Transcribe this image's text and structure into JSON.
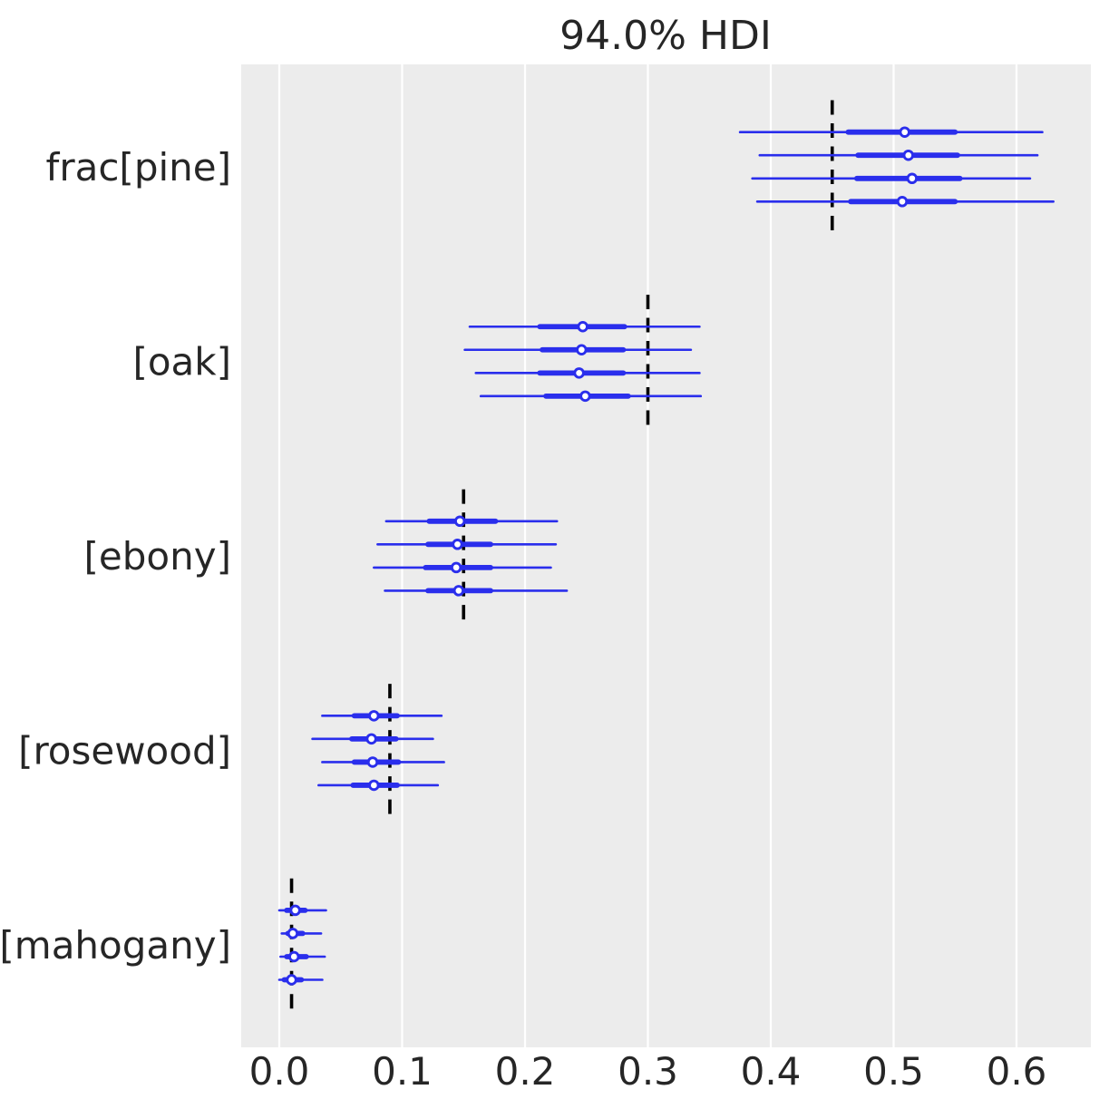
{
  "figure": {
    "title": "94.0% HDI"
  },
  "chart_data": {
    "type": "forest",
    "title": "94.0% HDI",
    "hdi_prob": 0.94,
    "xlabel": "",
    "ylabel": "",
    "xlim": [
      -0.031,
      0.66
    ],
    "x_ticks": [
      "0.0",
      "0.1",
      "0.2",
      "0.3",
      "0.4",
      "0.5",
      "0.6"
    ],
    "x_tick_values": [
      0.0,
      0.1,
      0.2,
      0.3,
      0.4,
      0.5,
      0.6
    ],
    "grid": "vertical-white-gridlines-on-gray",
    "legend": "none",
    "colors": {
      "series": "#2a2eec",
      "marker_fill": "#ffffff",
      "reference_line": "#000000",
      "plot_background": "#ececec",
      "gridline": "#ffffff",
      "text": "#262626"
    },
    "groups": [
      {
        "label": "frac[pine]",
        "reference": 0.45,
        "chains": [
          {
            "hdi": [
              0.375,
              0.621
            ],
            "quartile": [
              0.463,
              0.55
            ],
            "median": 0.509
          },
          {
            "hdi": [
              0.391,
              0.617
            ],
            "quartile": [
              0.471,
              0.552
            ],
            "median": 0.512
          },
          {
            "hdi": [
              0.385,
              0.611
            ],
            "quartile": [
              0.47,
              0.554
            ],
            "median": 0.515
          },
          {
            "hdi": [
              0.389,
              0.63
            ],
            "quartile": [
              0.465,
              0.55
            ],
            "median": 0.507
          }
        ]
      },
      {
        "label": "[oak]",
        "reference": 0.3,
        "chains": [
          {
            "hdi": [
              0.155,
              0.342
            ],
            "quartile": [
              0.212,
              0.281
            ],
            "median": 0.247
          },
          {
            "hdi": [
              0.151,
              0.335
            ],
            "quartile": [
              0.214,
              0.28
            ],
            "median": 0.246
          },
          {
            "hdi": [
              0.16,
              0.342
            ],
            "quartile": [
              0.212,
              0.28
            ],
            "median": 0.244
          },
          {
            "hdi": [
              0.164,
              0.343
            ],
            "quartile": [
              0.217,
              0.284
            ],
            "median": 0.249
          }
        ]
      },
      {
        "label": "[ebony]",
        "reference": 0.15,
        "chains": [
          {
            "hdi": [
              0.087,
              0.226
            ],
            "quartile": [
              0.122,
              0.176
            ],
            "median": 0.147
          },
          {
            "hdi": [
              0.08,
              0.225
            ],
            "quartile": [
              0.121,
              0.172
            ],
            "median": 0.145
          },
          {
            "hdi": [
              0.077,
              0.221
            ],
            "quartile": [
              0.119,
              0.172
            ],
            "median": 0.144
          },
          {
            "hdi": [
              0.086,
              0.234
            ],
            "quartile": [
              0.121,
              0.172
            ],
            "median": 0.146
          }
        ]
      },
      {
        "label": "[rosewood]",
        "reference": 0.09,
        "chains": [
          {
            "hdi": [
              0.035,
              0.132
            ],
            "quartile": [
              0.061,
              0.096
            ],
            "median": 0.077
          },
          {
            "hdi": [
              0.027,
              0.125
            ],
            "quartile": [
              0.059,
              0.095
            ],
            "median": 0.075
          },
          {
            "hdi": [
              0.035,
              0.134
            ],
            "quartile": [
              0.061,
              0.097
            ],
            "median": 0.076
          },
          {
            "hdi": [
              0.032,
              0.129
            ],
            "quartile": [
              0.06,
              0.096
            ],
            "median": 0.077
          }
        ]
      },
      {
        "label": "[mahogany]",
        "reference": 0.01,
        "chains": [
          {
            "hdi": [
              0.0,
              0.038
            ],
            "quartile": [
              0.006,
              0.021
            ],
            "median": 0.013
          },
          {
            "hdi": [
              0.002,
              0.034
            ],
            "quartile": [
              0.007,
              0.019
            ],
            "median": 0.011
          },
          {
            "hdi": [
              0.001,
              0.037
            ],
            "quartile": [
              0.006,
              0.022
            ],
            "median": 0.012
          },
          {
            "hdi": [
              0.0,
              0.035
            ],
            "quartile": [
              0.004,
              0.018
            ],
            "median": 0.01
          }
        ]
      }
    ]
  }
}
